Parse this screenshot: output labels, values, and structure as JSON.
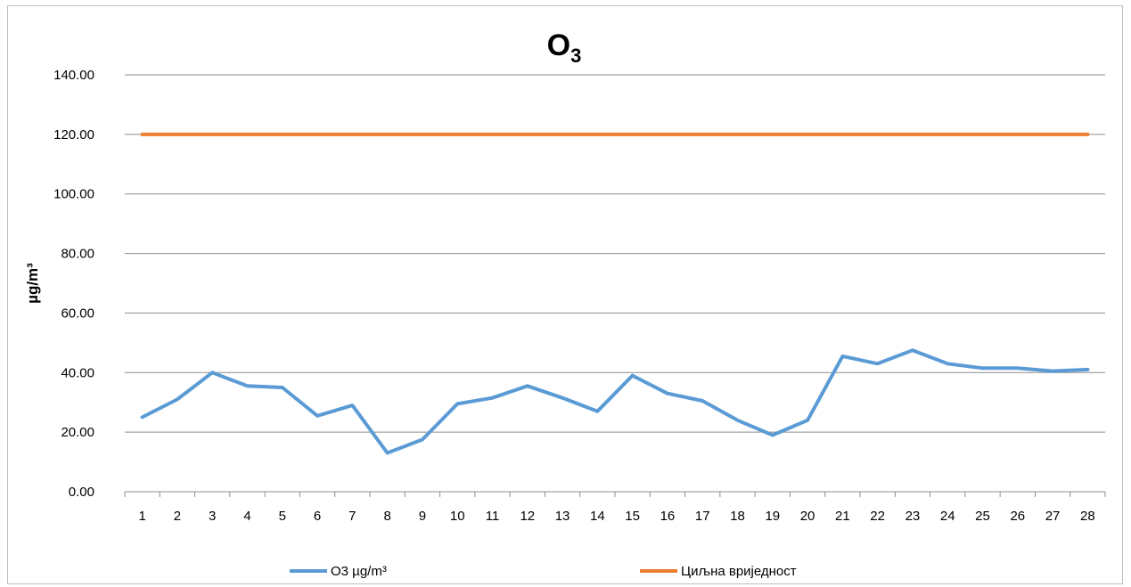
{
  "chart_data": {
    "type": "line",
    "title": "O",
    "title_subscript": "3",
    "xlabel": "",
    "ylabel": "µg/m³",
    "ylim": [
      0,
      140
    ],
    "y_ticks": [
      "0.00",
      "20.00",
      "40.00",
      "60.00",
      "80.00",
      "100.00",
      "120.00",
      "140.00"
    ],
    "categories": [
      "1",
      "2",
      "3",
      "4",
      "5",
      "6",
      "7",
      "8",
      "9",
      "10",
      "11",
      "12",
      "13",
      "14",
      "15",
      "16",
      "17",
      "18",
      "19",
      "20",
      "21",
      "22",
      "23",
      "24",
      "25",
      "26",
      "27",
      "28"
    ],
    "grid": "horizontal",
    "legend_position": "bottom",
    "series": [
      {
        "name": "O3 µg/m³",
        "color": "#5b9bd5",
        "values": [
          25.0,
          31.0,
          40.0,
          35.5,
          35.0,
          25.5,
          29.0,
          13.0,
          17.5,
          29.5,
          31.5,
          35.5,
          31.5,
          27.0,
          39.0,
          33.0,
          30.5,
          24.0,
          19.0,
          24.0,
          45.5,
          43.0,
          47.5,
          43.0,
          41.5,
          41.5,
          40.5,
          41.0
        ]
      },
      {
        "name": "Циљна вриједност",
        "color": "#ed7d31",
        "values": [
          120,
          120,
          120,
          120,
          120,
          120,
          120,
          120,
          120,
          120,
          120,
          120,
          120,
          120,
          120,
          120,
          120,
          120,
          120,
          120,
          120,
          120,
          120,
          120,
          120,
          120,
          120,
          120
        ]
      }
    ]
  }
}
